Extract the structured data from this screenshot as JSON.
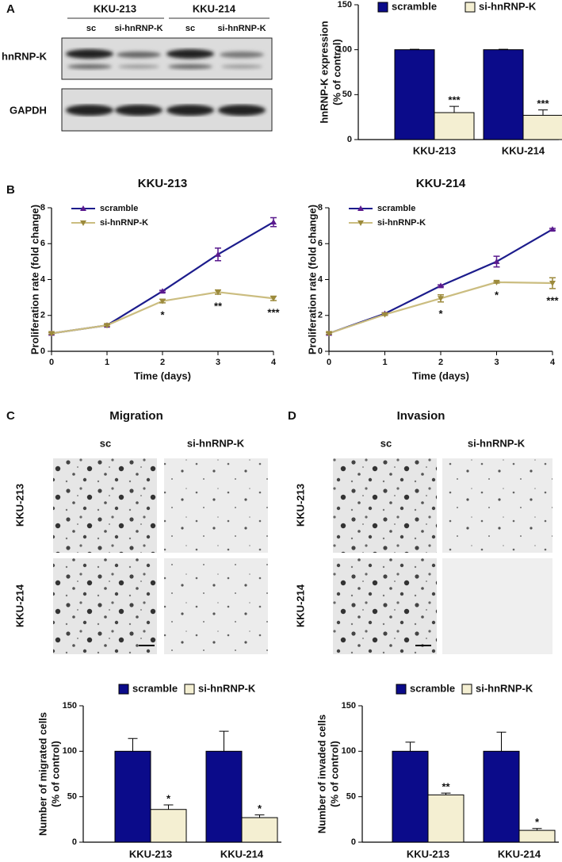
{
  "figure": {
    "panel_letters": [
      "A",
      "B",
      "C",
      "D"
    ],
    "blot": {
      "cell_lines": [
        "KKU-213",
        "KKU-214"
      ],
      "lanes": [
        "sc",
        "si-hnRNP-K",
        "sc",
        "si-hnRNP-K"
      ],
      "proteins": [
        "hnRNP-K",
        "GAPDH"
      ]
    },
    "assays": [
      {
        "title": "Migration",
        "columns": [
          "sc",
          "si-hnRNP-K"
        ],
        "rows": [
          "KKU-213",
          "KKU-214"
        ]
      },
      {
        "title": "Invasion",
        "columns": [
          "sc",
          "si-hnRNP-K"
        ],
        "rows": [
          "KKU-213",
          "KKU-214"
        ]
      }
    ]
  },
  "chart_data": [
    {
      "type": "bar",
      "ylabel": [
        "hnRNP-K expression",
        "(% of control)"
      ],
      "categories": [
        "KKU-213",
        "KKU-214"
      ],
      "ylim": [
        0,
        150
      ],
      "yticks": [
        0,
        50,
        100,
        150
      ],
      "series": [
        {
          "name": "scramble",
          "color": "#0b0b8a",
          "values": [
            100,
            100
          ],
          "errors": [
            0.5,
            0.5
          ]
        },
        {
          "name": "si-hnRNP-K",
          "color": "#f4efd2",
          "values": [
            30,
            27
          ],
          "errors": [
            7,
            6
          ],
          "significance": [
            "***",
            "***"
          ]
        }
      ]
    },
    {
      "type": "line",
      "title": "KKU-213",
      "xlabel": "Time (days)",
      "ylabel": "Proliferation rate (fold change)",
      "x": [
        0,
        1,
        2,
        3,
        4
      ],
      "xlim": [
        0,
        4
      ],
      "xticks": [
        0,
        1,
        2,
        3,
        4
      ],
      "ylim": [
        0,
        8
      ],
      "yticks": [
        0,
        2,
        4,
        6,
        8
      ],
      "series": [
        {
          "name": "scramble",
          "color": "#1c1c8c",
          "marker_color": "#5a1a8e",
          "marker": "triangle-up",
          "values": [
            1,
            1.45,
            3.35,
            5.4,
            7.2
          ],
          "errors": [
            0.05,
            0.05,
            0.05,
            0.35,
            0.25
          ]
        },
        {
          "name": "si-hnRNP-K",
          "color": "#cbbd80",
          "marker_color": "#9c8a3c",
          "marker": "triangle-down",
          "values": [
            1,
            1.45,
            2.8,
            3.3,
            2.95
          ],
          "errors": [
            0.05,
            0.05,
            0.1,
            0.12,
            0.12
          ],
          "significance": [
            null,
            null,
            "*",
            "**",
            "***"
          ]
        }
      ]
    },
    {
      "type": "line",
      "title": "KKU-214",
      "xlabel": "Time (days)",
      "ylabel": "Proliferation rate (fold change)",
      "x": [
        0,
        1,
        2,
        3,
        4
      ],
      "xlim": [
        0,
        4
      ],
      "xticks": [
        0,
        1,
        2,
        3,
        4
      ],
      "ylim": [
        0,
        8
      ],
      "yticks": [
        0,
        2,
        4,
        6,
        8
      ],
      "series": [
        {
          "name": "scramble",
          "color": "#1c1c8c",
          "marker_color": "#5a1a8e",
          "marker": "triangle-up",
          "values": [
            1,
            2.1,
            3.65,
            5.0,
            6.8
          ],
          "errors": [
            0.05,
            0.05,
            0.05,
            0.3,
            0.05
          ]
        },
        {
          "name": "si-hnRNP-K",
          "color": "#cbbd80",
          "marker_color": "#9c8a3c",
          "marker": "triangle-down",
          "values": [
            1,
            2.05,
            2.95,
            3.85,
            3.8
          ],
          "errors": [
            0.05,
            0.05,
            0.2,
            0.05,
            0.3
          ],
          "significance": [
            null,
            null,
            "*",
            "*",
            "***"
          ]
        }
      ]
    },
    {
      "type": "bar",
      "ylabel": [
        "Number of migrated cells",
        "(% of control)"
      ],
      "categories": [
        "KKU-213",
        "KKU-214"
      ],
      "ylim": [
        0,
        150
      ],
      "yticks": [
        0,
        50,
        100,
        150
      ],
      "series": [
        {
          "name": "scramble",
          "color": "#0b0b8a",
          "values": [
            100,
            100
          ],
          "errors": [
            14,
            22
          ]
        },
        {
          "name": "si-hnRNP-K",
          "color": "#f4efd2",
          "values": [
            36,
            27
          ],
          "errors": [
            5,
            3
          ],
          "significance": [
            "*",
            "*"
          ]
        }
      ]
    },
    {
      "type": "bar",
      "ylabel": [
        "Number of invaded cells",
        "(% of control)"
      ],
      "categories": [
        "KKU-213",
        "KKU-214"
      ],
      "ylim": [
        0,
        150
      ],
      "yticks": [
        0,
        50,
        100,
        150
      ],
      "series": [
        {
          "name": "scramble",
          "color": "#0b0b8a",
          "values": [
            100,
            100
          ],
          "errors": [
            10,
            21
          ]
        },
        {
          "name": "si-hnRNP-K",
          "color": "#f4efd2",
          "values": [
            52,
            13
          ],
          "errors": [
            2,
            2
          ],
          "significance": [
            "**",
            "*"
          ]
        }
      ]
    }
  ]
}
